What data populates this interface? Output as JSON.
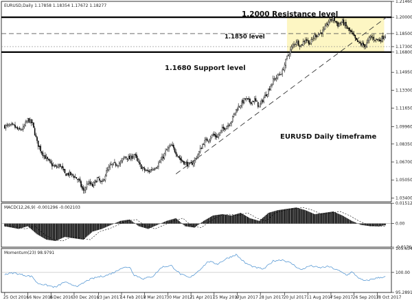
{
  "chart_data": [
    {
      "type": "candlestick",
      "header": "EURUSD,Daily  1.17858  1.18354  1.17672  1.18277",
      "ylim": [
        1.0304,
        1.2146
      ],
      "y_ticks": [
        "1.21460",
        "1.20000",
        "1.18500",
        "1.17300",
        "1.16800",
        "1.14950",
        "1.13300",
        "1.11650",
        "1.09960",
        "1.08350",
        "1.06700",
        "1.05050",
        "1.03400"
      ],
      "x_ticks": [
        "25 Oct 2016",
        "16 Nov 2016",
        "8 Dec 2016",
        "30 Dec 2016",
        "23 Jan 2017",
        "14 Feb 2017",
        "8 Mar 2017",
        "30 Mar 2017",
        "21 Apr 2017",
        "15 May 2017",
        "6 Jun 2017",
        "28 Jun 2017",
        "20 Jul 2017",
        "11 Aug 2017",
        "4 Sep 2017",
        "26 Sep 2017",
        "18 Oct 2017"
      ],
      "close_path": [
        [
          0,
          1.1
        ],
        [
          8,
          1.1
        ],
        [
          12,
          1.096
        ],
        [
          16,
          1.098
        ],
        [
          20,
          1.106
        ],
        [
          24,
          1.102
        ],
        [
          28,
          1.085
        ],
        [
          32,
          1.076
        ],
        [
          36,
          1.07
        ],
        [
          40,
          1.065
        ],
        [
          44,
          1.062
        ],
        [
          48,
          1.064
        ],
        [
          52,
          1.056
        ],
        [
          56,
          1.056
        ],
        [
          60,
          1.054
        ],
        [
          64,
          1.05
        ],
        [
          68,
          1.04
        ],
        [
          72,
          1.048
        ],
        [
          76,
          1.045
        ],
        [
          80,
          1.052
        ],
        [
          84,
          1.047
        ],
        [
          88,
          1.058
        ],
        [
          92,
          1.064
        ],
        [
          96,
          1.065
        ],
        [
          100,
          1.066
        ],
        [
          104,
          1.072
        ],
        [
          108,
          1.07
        ],
        [
          112,
          1.074
        ],
        [
          116,
          1.065
        ],
        [
          120,
          1.06
        ],
        [
          124,
          1.058
        ],
        [
          128,
          1.061
        ],
        [
          132,
          1.064
        ],
        [
          136,
          1.07
        ],
        [
          140,
          1.078
        ],
        [
          144,
          1.082
        ],
        [
          148,
          1.076
        ],
        [
          152,
          1.069
        ],
        [
          156,
          1.066
        ],
        [
          160,
          1.064
        ],
        [
          164,
          1.068
        ],
        [
          168,
          1.076
        ],
        [
          172,
          1.085
        ],
        [
          176,
          1.088
        ],
        [
          180,
          1.092
        ],
        [
          184,
          1.09
        ],
        [
          188,
          1.097
        ],
        [
          192,
          1.1
        ],
        [
          196,
          1.105
        ],
        [
          200,
          1.115
        ],
        [
          204,
          1.12
        ],
        [
          208,
          1.125
        ],
        [
          212,
          1.122
        ],
        [
          216,
          1.124
        ],
        [
          220,
          1.118
        ],
        [
          224,
          1.126
        ],
        [
          228,
          1.133
        ],
        [
          232,
          1.142
        ],
        [
          236,
          1.146
        ],
        [
          240,
          1.15
        ],
        [
          244,
          1.163
        ],
        [
          248,
          1.172
        ],
        [
          252,
          1.178
        ],
        [
          256,
          1.174
        ],
        [
          260,
          1.18
        ],
        [
          264,
          1.176
        ],
        [
          268,
          1.183
        ],
        [
          272,
          1.185
        ],
        [
          276,
          1.188
        ],
        [
          280,
          1.196
        ],
        [
          284,
          1.199
        ],
        [
          288,
          1.193
        ],
        [
          292,
          1.196
        ],
        [
          296,
          1.19
        ],
        [
          300,
          1.185
        ],
        [
          304,
          1.178
        ],
        [
          308,
          1.175
        ],
        [
          312,
          1.174
        ],
        [
          316,
          1.182
        ],
        [
          320,
          1.18
        ],
        [
          324,
          1.179
        ],
        [
          328,
          1.1828
        ]
      ],
      "levels": [
        {
          "value": 1.2,
          "label": "1.2000 Resistance level",
          "line": "thick"
        },
        {
          "value": 1.185,
          "label": "1.1850 level",
          "line": "dashed"
        },
        {
          "value": 1.168,
          "label": "1.1680 Support level",
          "line": "thick"
        }
      ],
      "annotation": "EURUSD Daily timeframe",
      "consolidation_box": {
        "x_from_bar": 244,
        "x_to_bar": 328,
        "y_from": 1.168,
        "y_to": 1.2,
        "color": "#fdf6c3"
      },
      "trendline": {
        "from": [
          148,
          1.056
        ],
        "to": [
          330,
          1.2
        ]
      }
    },
    {
      "type": "histogram",
      "header": "MACD(12,26,9) -0.001296 -0.002103",
      "ylim": [
        -0.0176,
        0.0152
      ],
      "y_ticks": [
        "0.015125",
        "0.00",
        "-0.017613"
      ],
      "values_path": [
        [
          0,
          -0.002
        ],
        [
          12,
          -0.004
        ],
        [
          20,
          -0.002
        ],
        [
          28,
          -0.008
        ],
        [
          36,
          -0.012
        ],
        [
          44,
          -0.013
        ],
        [
          52,
          -0.01
        ],
        [
          60,
          -0.011
        ],
        [
          68,
          -0.012
        ],
        [
          76,
          -0.006
        ],
        [
          84,
          -0.004
        ],
        [
          92,
          -0.001
        ],
        [
          100,
          0.002
        ],
        [
          108,
          0.003
        ],
        [
          116,
          -0.002
        ],
        [
          124,
          -0.004
        ],
        [
          132,
          -0.001
        ],
        [
          140,
          0.002
        ],
        [
          148,
          0.004
        ],
        [
          156,
          -0.002
        ],
        [
          164,
          -0.003
        ],
        [
          172,
          0.002
        ],
        [
          180,
          0.006
        ],
        [
          188,
          0.007
        ],
        [
          196,
          0.006
        ],
        [
          204,
          0.008
        ],
        [
          212,
          0.004
        ],
        [
          220,
          0.002
        ],
        [
          228,
          0.008
        ],
        [
          236,
          0.01
        ],
        [
          244,
          0.011
        ],
        [
          252,
          0.012
        ],
        [
          260,
          0.01
        ],
        [
          268,
          0.007
        ],
        [
          276,
          0.008
        ],
        [
          284,
          0.009
        ],
        [
          292,
          0.006
        ],
        [
          300,
          0.002
        ],
        [
          308,
          -0.001
        ],
        [
          316,
          -0.002
        ],
        [
          324,
          -0.002
        ],
        [
          328,
          -0.0013
        ]
      ],
      "signal_line": "dotted"
    },
    {
      "type": "line",
      "header": "Momentum(23) 98.9791",
      "ylim": [
        95.2891,
        105.6346
      ],
      "y_ticks": [
        "105.6346",
        "100.00",
        "95.2891"
      ],
      "reference_line": 100,
      "values_path": [
        [
          0,
          99.6
        ],
        [
          8,
          99.9
        ],
        [
          16,
          99.4
        ],
        [
          24,
          99.0
        ],
        [
          28,
          97.5
        ],
        [
          36,
          97.0
        ],
        [
          44,
          96.5
        ],
        [
          52,
          97.8
        ],
        [
          56,
          97.2
        ],
        [
          64,
          96.8
        ],
        [
          72,
          98.2
        ],
        [
          80,
          98.9
        ],
        [
          88,
          99.3
        ],
        [
          96,
          100.2
        ],
        [
          100,
          101.0
        ],
        [
          108,
          101.3
        ],
        [
          112,
          99.4
        ],
        [
          120,
          98.5
        ],
        [
          128,
          99.1
        ],
        [
          136,
          101.3
        ],
        [
          144,
          101.6
        ],
        [
          152,
          99.6
        ],
        [
          160,
          98.7
        ],
        [
          168,
          100.5
        ],
        [
          176,
          102.6
        ],
        [
          184,
          102.0
        ],
        [
          192,
          103.3
        ],
        [
          200,
          104.2
        ],
        [
          208,
          102.2
        ],
        [
          216,
          101.2
        ],
        [
          224,
          100.8
        ],
        [
          232,
          102.7
        ],
        [
          240,
          103.0
        ],
        [
          248,
          102.1
        ],
        [
          256,
          100.6
        ],
        [
          264,
          101.6
        ],
        [
          272,
          101.1
        ],
        [
          280,
          101.4
        ],
        [
          288,
          100.5
        ],
        [
          296,
          99.4
        ],
        [
          300,
          100.1
        ],
        [
          308,
          98.3
        ],
        [
          312,
          98.0
        ],
        [
          320,
          98.6
        ],
        [
          328,
          98.98
        ]
      ]
    }
  ],
  "colors": {
    "candle": "#000000",
    "annotation": "#111111",
    "momentum": "#5b9bd5",
    "box": "#fdf6c3"
  }
}
